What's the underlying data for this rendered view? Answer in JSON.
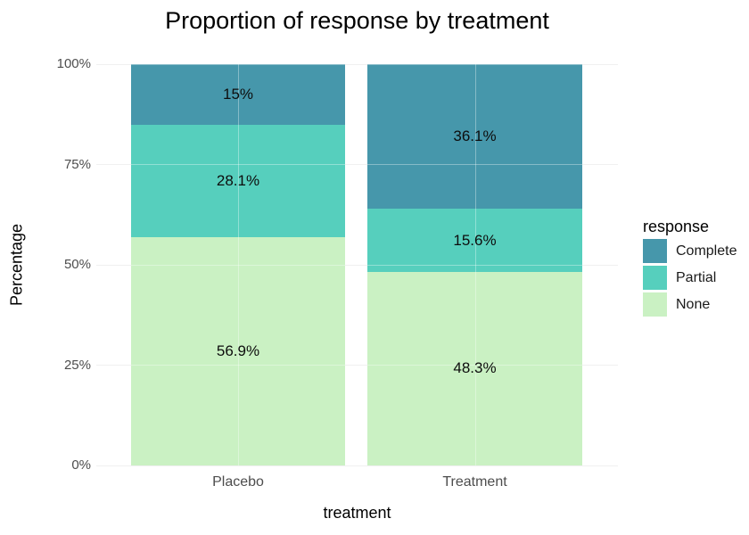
{
  "title": "Proportion of response by treatment",
  "axes": {
    "y_title": "Percentage",
    "x_title": "treatment",
    "y_ticks": [
      "0%",
      "25%",
      "50%",
      "75%",
      "100%"
    ],
    "x_ticks": [
      "Placebo",
      "Treatment"
    ]
  },
  "legend": {
    "title": "response",
    "items": [
      {
        "label": "Complete",
        "color": "#4697AB"
      },
      {
        "label": "Partial",
        "color": "#56CFBD"
      },
      {
        "label": "None",
        "color": "#CAF1C3"
      }
    ]
  },
  "chart_data": {
    "type": "bar",
    "subtype": "stacked-percent",
    "title": "Proportion of response by treatment",
    "xlabel": "treatment",
    "ylabel": "Percentage",
    "categories": [
      "Placebo",
      "Treatment"
    ],
    "series": [
      {
        "name": "Complete",
        "color": "#4697AB",
        "values": [
          15,
          36.1
        ],
        "labels": [
          "15%",
          "36.1%"
        ]
      },
      {
        "name": "Partial",
        "color": "#56CFBD",
        "values": [
          28.1,
          15.6
        ],
        "labels": [
          "28.1%",
          "15.6%"
        ]
      },
      {
        "name": "None",
        "color": "#CAF1C3",
        "values": [
          56.9,
          48.3
        ],
        "labels": [
          "56.9%",
          "48.3%"
        ]
      }
    ],
    "stack_order_top_to_bottom": [
      "Complete",
      "Partial",
      "None"
    ],
    "ylim": [
      0,
      100
    ],
    "y_tick_values": [
      0,
      25,
      50,
      75,
      100
    ],
    "grid": true,
    "legend_position": "right"
  },
  "colors": {
    "background": "#FFFFFF",
    "grid": "#E9E9E9",
    "tick_label": "#4D4D4D",
    "text": "#000000",
    "bar_label": "#0D0D0D"
  }
}
